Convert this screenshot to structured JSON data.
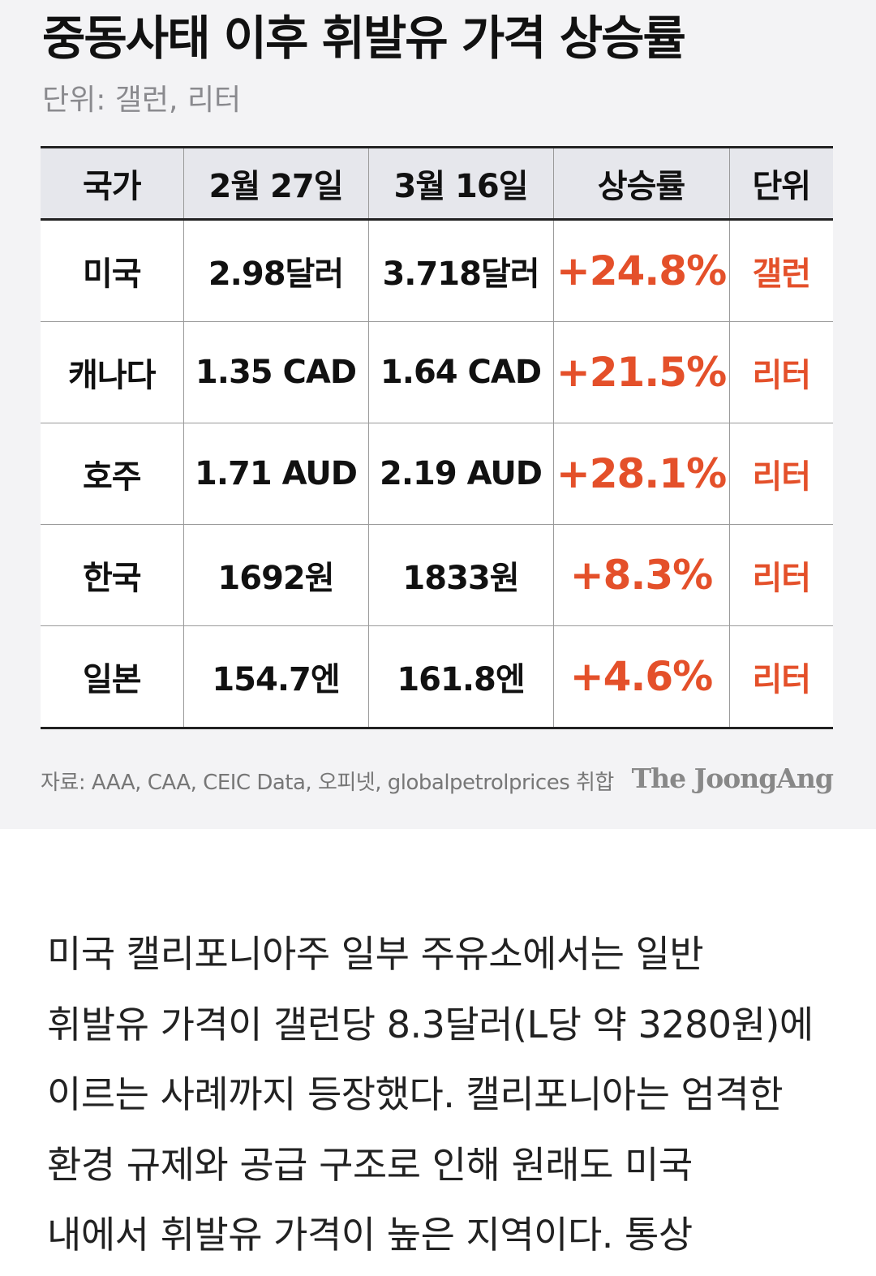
{
  "infographic": {
    "title": "중동사태 이후 휘발유 가격 상승률",
    "subtitle": "단위: 갤런, 리터",
    "table": {
      "header": [
        "국가",
        "2월 27일",
        "3월 16일",
        "상승률",
        "단위"
      ],
      "rows": [
        [
          "미국",
          "2.98달러",
          "3.718달러",
          "+24.8%",
          "갤런"
        ],
        [
          "캐나다",
          "1.35 CAD",
          "1.64 CAD",
          "+21.5%",
          "리터"
        ],
        [
          "호주",
          "1.71 AUD",
          "2.19 AUD",
          "+28.1%",
          "리터"
        ],
        [
          "한국",
          "1692원",
          "1833원",
          "+8.3%",
          "리터"
        ],
        [
          "일본",
          "154.7엔",
          "161.8엔",
          "+4.6%",
          "리터"
        ]
      ]
    },
    "source": "자료: AAA, CAA, CEIC Data, 오피넷, globalpetrolprices 취합",
    "logo": "The JoongAng"
  },
  "article": {
    "lines": [
      "미국 캘리포니아주 일부 주유소에서는 일반",
      "휘발유 가격이 갤런당 8.3달러(L당 약 3280원)에",
      "이르는 사례까지 등장했다. 캘리포니아는 엄격한",
      "환경 규제와 공급 구조로 인해 원래도 미국",
      "내에서 휘발유 가격이 높은 지역이다. 통상"
    ]
  }
}
